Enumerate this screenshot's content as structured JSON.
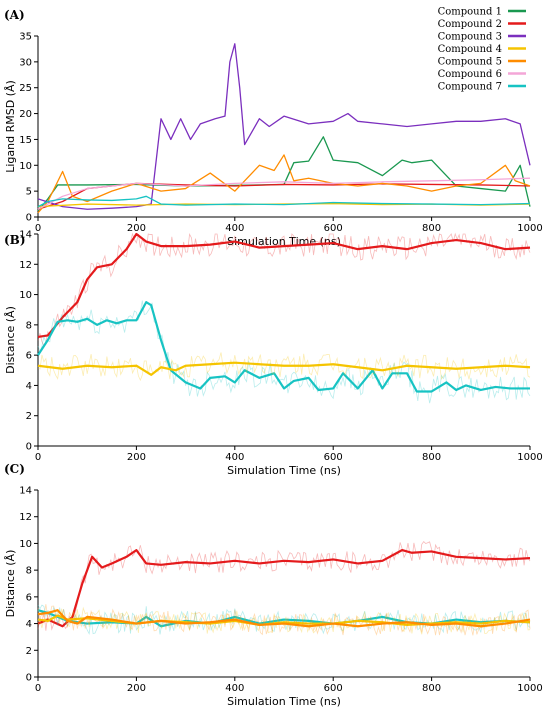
{
  "chart_data": [
    {
      "panel": "(A)",
      "type": "line",
      "xlabel": "Simulation Time (ns)",
      "ylabel": "Ligand RMSD (Å)",
      "xlim": [
        0,
        1000
      ],
      "ylim": [
        0,
        35
      ],
      "xticks": [
        0,
        200,
        400,
        600,
        800,
        1000
      ],
      "yticks": [
        0,
        5,
        10,
        15,
        20,
        25,
        30,
        35
      ],
      "legend": "top-right",
      "series": [
        {
          "name": "Compound 1",
          "color": "#1a9850",
          "x": [
            0,
            20,
            40,
            100,
            200,
            300,
            400,
            500,
            520,
            550,
            580,
            600,
            650,
            700,
            740,
            760,
            800,
            850,
            900,
            950,
            980,
            1000
          ],
          "y": [
            1.2,
            3.5,
            6.2,
            6.2,
            6.3,
            6.0,
            6.1,
            6.3,
            10.5,
            10.8,
            15.5,
            11.0,
            10.5,
            8.0,
            11.0,
            10.5,
            11.0,
            6.0,
            5.5,
            5.0,
            10.0,
            2.0
          ]
        },
        {
          "name": "Compound 2",
          "color": "#e41a1c",
          "x": [
            0,
            50,
            100,
            150,
            200,
            300,
            400,
            500,
            600,
            700,
            800,
            900,
            1000
          ],
          "y": [
            1.5,
            3.0,
            5.5,
            6.0,
            6.5,
            6.2,
            6.0,
            6.3,
            6.2,
            6.4,
            6.3,
            6.2,
            6.0
          ]
        },
        {
          "name": "Compound 3",
          "color": "#7b2fbe",
          "x": [
            0,
            50,
            100,
            150,
            200,
            230,
            250,
            270,
            290,
            310,
            330,
            360,
            380,
            390,
            400,
            410,
            420,
            450,
            470,
            500,
            550,
            600,
            630,
            650,
            700,
            750,
            800,
            850,
            900,
            950,
            980,
            1000
          ],
          "y": [
            3.5,
            2.0,
            1.5,
            1.7,
            2.0,
            2.5,
            19.0,
            15.0,
            19.0,
            15.0,
            18.0,
            19.0,
            19.5,
            30.0,
            33.5,
            25.0,
            14.0,
            19.0,
            17.5,
            19.5,
            18.0,
            18.5,
            20.0,
            18.5,
            18.0,
            17.5,
            18.0,
            18.5,
            18.5,
            19.0,
            18.0,
            10.0
          ]
        },
        {
          "name": "Compound 4",
          "color": "#f5c400",
          "x": [
            0,
            100,
            200,
            300,
            400,
            500,
            600,
            700,
            800,
            900,
            1000
          ],
          "y": [
            2.0,
            2.5,
            2.3,
            2.5,
            2.4,
            2.5,
            2.6,
            2.4,
            2.5,
            2.3,
            2.5
          ]
        },
        {
          "name": "Compound 5",
          "color": "#ff8c00",
          "x": [
            0,
            20,
            50,
            70,
            100,
            150,
            200,
            250,
            300,
            350,
            400,
            450,
            480,
            500,
            520,
            550,
            600,
            650,
            700,
            750,
            800,
            850,
            900,
            950,
            970,
            1000
          ],
          "y": [
            0.8,
            3.0,
            8.8,
            4.0,
            3.0,
            5.0,
            6.5,
            5.0,
            5.5,
            8.5,
            5.0,
            10.0,
            9.0,
            12.0,
            7.0,
            7.5,
            6.5,
            6.0,
            6.5,
            6.0,
            5.0,
            6.0,
            6.5,
            10.0,
            7.0,
            6.0
          ]
        },
        {
          "name": "Compound 6",
          "color": "#f4a6d7",
          "x": [
            0,
            50,
            100,
            200,
            300,
            400,
            500,
            600,
            700,
            800,
            900,
            1000
          ],
          "y": [
            1.5,
            4.0,
            5.5,
            6.5,
            6.0,
            6.5,
            6.8,
            6.5,
            6.8,
            7.0,
            7.2,
            7.5
          ]
        },
        {
          "name": "Compound 7",
          "color": "#17c3c3",
          "x": [
            0,
            20,
            50,
            100,
            150,
            200,
            220,
            250,
            300,
            400,
            500,
            600,
            700,
            800,
            900,
            1000
          ],
          "y": [
            2.0,
            3.0,
            3.5,
            3.3,
            3.2,
            3.5,
            4.0,
            2.5,
            2.3,
            2.5,
            2.4,
            2.8,
            2.6,
            2.5,
            2.4,
            2.6
          ]
        }
      ]
    },
    {
      "panel": "(B)",
      "type": "line",
      "xlabel": "Simulation Time (ns)",
      "ylabel": "Distance (Å)",
      "xlim": [
        0,
        1000
      ],
      "ylim": [
        0,
        14
      ],
      "xticks": [
        0,
        200,
        400,
        600,
        800,
        1000
      ],
      "yticks": [
        0,
        2,
        4,
        6,
        8,
        10,
        12,
        14
      ],
      "series": [
        {
          "color": "#e41a1c",
          "x": [
            0,
            20,
            50,
            80,
            100,
            120,
            150,
            180,
            200,
            220,
            250,
            300,
            350,
            400,
            450,
            500,
            550,
            600,
            650,
            700,
            750,
            800,
            850,
            900,
            950,
            1000
          ],
          "y": [
            7.2,
            7.3,
            8.5,
            9.5,
            11.0,
            11.8,
            12.0,
            13.0,
            14.0,
            13.5,
            13.2,
            13.2,
            13.3,
            13.5,
            13.1,
            13.2,
            13.3,
            13.4,
            13.0,
            13.2,
            13.0,
            13.4,
            13.6,
            13.4,
            13.0,
            13.1
          ]
        },
        {
          "color": "#17c3c3",
          "x": [
            0,
            20,
            40,
            60,
            80,
            100,
            120,
            140,
            160,
            180,
            200,
            220,
            230,
            250,
            270,
            300,
            330,
            350,
            380,
            400,
            420,
            450,
            480,
            500,
            520,
            550,
            570,
            600,
            620,
            650,
            680,
            700,
            720,
            750,
            770,
            800,
            830,
            850,
            870,
            900,
            930,
            960,
            1000
          ],
          "y": [
            6.0,
            7.0,
            8.2,
            8.3,
            8.2,
            8.4,
            8.0,
            8.3,
            8.1,
            8.3,
            8.3,
            9.5,
            9.3,
            7.0,
            5.0,
            4.2,
            3.8,
            4.5,
            4.6,
            4.2,
            5.0,
            4.5,
            4.8,
            3.8,
            4.3,
            4.5,
            3.7,
            3.8,
            4.8,
            3.8,
            5.0,
            3.8,
            4.8,
            4.8,
            3.6,
            3.6,
            4.2,
            3.7,
            4.0,
            3.7,
            3.9,
            3.8,
            3.8
          ]
        },
        {
          "color": "#f5c400",
          "x": [
            0,
            50,
            100,
            150,
            200,
            230,
            250,
            280,
            300,
            350,
            400,
            450,
            500,
            550,
            600,
            650,
            700,
            750,
            800,
            850,
            900,
            950,
            1000
          ],
          "y": [
            5.3,
            5.1,
            5.3,
            5.2,
            5.3,
            4.7,
            5.2,
            5.0,
            5.3,
            5.4,
            5.5,
            5.4,
            5.3,
            5.3,
            5.4,
            5.2,
            5.0,
            5.3,
            5.2,
            5.1,
            5.2,
            5.3,
            5.2
          ]
        }
      ]
    },
    {
      "panel": "(C)",
      "type": "line",
      "xlabel": "Simulation Time (ns)",
      "ylabel": "Distance (Å)",
      "xlim": [
        0,
        1000
      ],
      "ylim": [
        0,
        14
      ],
      "xticks": [
        0,
        200,
        400,
        600,
        800,
        1000
      ],
      "yticks": [
        0,
        2,
        4,
        6,
        8,
        10,
        12,
        14
      ],
      "series": [
        {
          "color": "#e41a1c",
          "x": [
            0,
            20,
            50,
            70,
            90,
            110,
            130,
            150,
            180,
            200,
            220,
            250,
            300,
            350,
            400,
            450,
            500,
            550,
            600,
            650,
            700,
            740,
            760,
            800,
            850,
            900,
            950,
            1000
          ],
          "y": [
            4.0,
            4.3,
            3.8,
            4.5,
            7.0,
            9.0,
            8.2,
            8.5,
            9.0,
            9.5,
            8.5,
            8.4,
            8.6,
            8.5,
            8.7,
            8.5,
            8.7,
            8.6,
            8.8,
            8.5,
            8.7,
            9.5,
            9.3,
            9.4,
            9.0,
            8.9,
            8.8,
            8.9
          ]
        },
        {
          "color": "#17c3c3",
          "x": [
            0,
            20,
            40,
            60,
            100,
            150,
            200,
            220,
            250,
            300,
            350,
            400,
            450,
            500,
            550,
            600,
            650,
            700,
            750,
            800,
            850,
            900,
            950,
            1000
          ],
          "y": [
            5.0,
            4.8,
            4.5,
            4.2,
            4.0,
            4.1,
            4.0,
            4.5,
            3.8,
            4.2,
            4.0,
            4.5,
            4.0,
            4.3,
            4.2,
            4.0,
            4.2,
            4.5,
            4.1,
            4.0,
            4.3,
            4.1,
            4.2,
            4.1
          ]
        },
        {
          "color": "#f5c400",
          "x": [
            0,
            20,
            40,
            60,
            100,
            150,
            200,
            250,
            300,
            350,
            400,
            450,
            500,
            550,
            600,
            650,
            700,
            750,
            800,
            850,
            900,
            950,
            1000
          ],
          "y": [
            4.3,
            4.2,
            4.6,
            4.3,
            4.4,
            4.2,
            4.0,
            4.2,
            4.1,
            4.0,
            4.2,
            3.9,
            4.1,
            4.0,
            4.0,
            4.2,
            4.1,
            3.9,
            4.0,
            4.1,
            4.0,
            4.2,
            4.1
          ]
        },
        {
          "color": "#ff8c00",
          "x": [
            0,
            20,
            40,
            60,
            80,
            100,
            150,
            200,
            250,
            300,
            350,
            400,
            450,
            500,
            550,
            600,
            650,
            700,
            750,
            800,
            850,
            900,
            950,
            1000
          ],
          "y": [
            4.7,
            4.8,
            5.0,
            4.2,
            4.0,
            4.5,
            4.3,
            4.0,
            4.2,
            4.0,
            4.1,
            4.3,
            3.9,
            4.0,
            3.8,
            4.0,
            3.8,
            4.0,
            4.1,
            3.9,
            4.0,
            3.8,
            4.0,
            4.3
          ]
        }
      ]
    }
  ]
}
